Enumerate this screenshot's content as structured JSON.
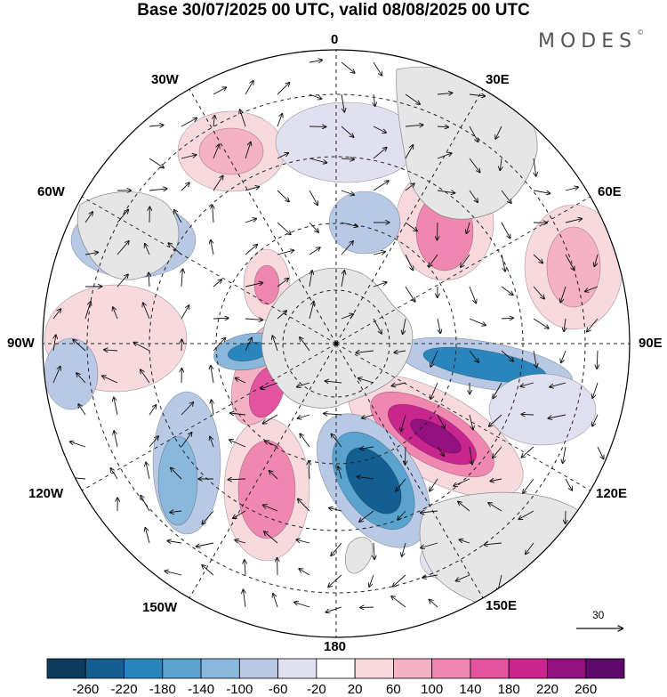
{
  "title": "Base 30/07/2025 00 UTC, valid 08/08/2025 00 UTC",
  "brand": "MODES",
  "brand_mark": "©",
  "longitude_labels": {
    "lon_0": "0",
    "lon_30e": "30E",
    "lon_60e": "60E",
    "lon_90e": "90E",
    "lon_120e": "120E",
    "lon_150e": "150E",
    "lon_180": "180",
    "lon_150w": "150W",
    "lon_120w": "120W",
    "lon_90w": "90W",
    "lon_60w": "60W",
    "lon_30w": "30W"
  },
  "vector_scale": "30",
  "colorbar": {
    "labels": [
      "-260",
      "-220",
      "-180",
      "-140",
      "-100",
      "-60",
      "-20",
      "20",
      "60",
      "100",
      "140",
      "180",
      "220",
      "260"
    ],
    "colors": [
      "#0d3b5e",
      "#145f92",
      "#2a85bd",
      "#5aa3cf",
      "#8ab7dc",
      "#b8c9e6",
      "#e1e0f0",
      "#ffffff",
      "#f8d9dd",
      "#f4b2c4",
      "#ef87b0",
      "#e2559e",
      "#c8258f",
      "#94107f",
      "#5e0a6b"
    ]
  },
  "colors": {
    "land": "#e6e6e6",
    "coast": "#888888"
  }
}
